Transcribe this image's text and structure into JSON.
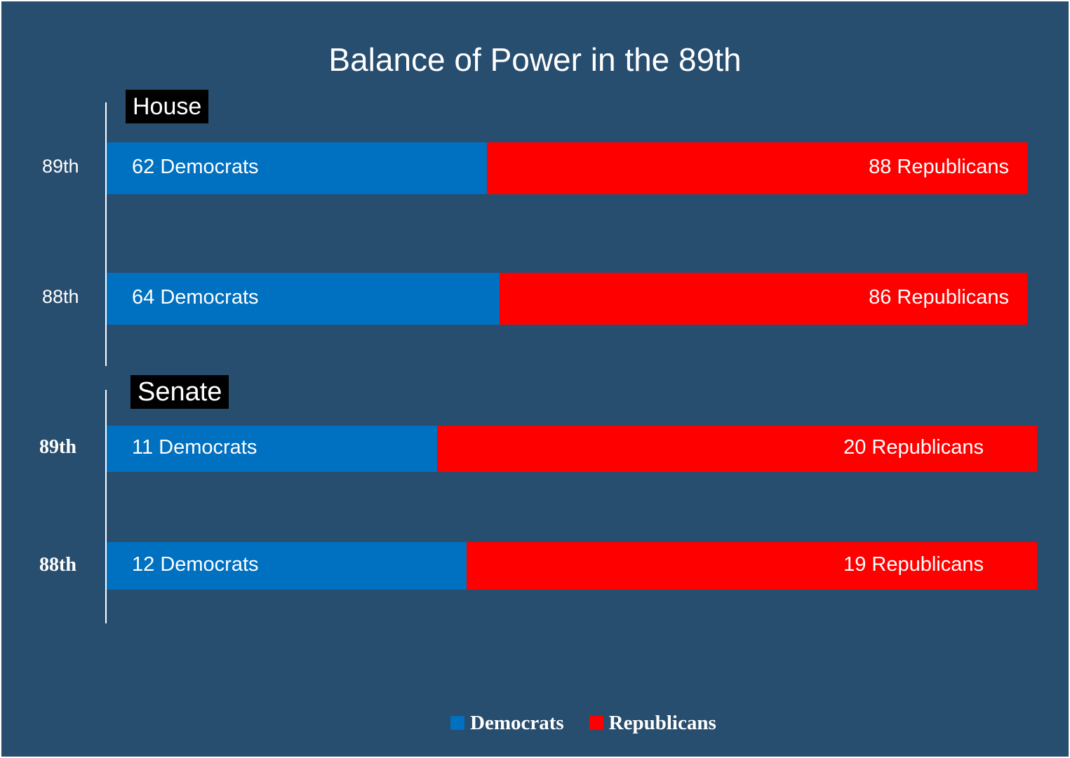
{
  "chart_data": {
    "type": "bar",
    "orientation": "horizontal",
    "stacked": true,
    "title": "Balance of Power in the 89th",
    "colors": {
      "Democrats": "#0070c0",
      "Republicans": "#ff0000",
      "background": "#274d6f"
    },
    "legend": {
      "placement": "bottom",
      "entries": [
        "Democrats",
        "Republicans"
      ]
    },
    "grid": false,
    "panels": [
      {
        "name": "House",
        "categories": [
          "89th",
          "88th"
        ],
        "series": [
          {
            "name": "Democrats",
            "values": [
              62,
              64
            ],
            "labels": [
              "62 Democrats",
              "64 Democrats"
            ]
          },
          {
            "name": "Republicans",
            "values": [
              88,
              86
            ],
            "labels": [
              "88 Republicans",
              "86 Republicans"
            ]
          }
        ]
      },
      {
        "name": "Senate",
        "categories": [
          "89th",
          "88th"
        ],
        "series": [
          {
            "name": "Democrats",
            "values": [
              11,
              12
            ],
            "labels": [
              "11 Democrats",
              "12 Democrats"
            ]
          },
          {
            "name": "Republicans",
            "values": [
              20,
              19
            ],
            "labels": [
              "20 Republicans",
              "19 Republicans"
            ]
          }
        ]
      }
    ]
  }
}
